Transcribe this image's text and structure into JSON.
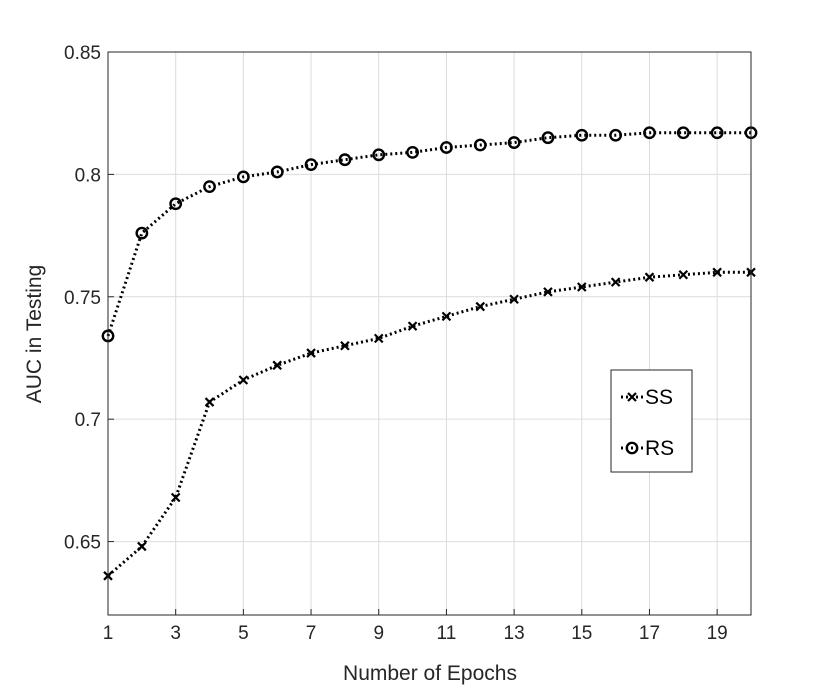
{
  "chart_data": {
    "type": "line",
    "title": "",
    "xlabel": "Number of Epochs",
    "ylabel": "AUC in Testing",
    "xlim": [
      1,
      20
    ],
    "ylim": [
      0.62,
      0.85
    ],
    "xticks": [
      1,
      3,
      5,
      7,
      9,
      11,
      13,
      15,
      17,
      19
    ],
    "yticks": [
      0.65,
      0.7,
      0.75,
      0.8,
      0.85
    ],
    "ytick_labels": [
      "0.65",
      "0.7",
      "0.75",
      "0.8",
      "0.85"
    ],
    "grid": true,
    "legend_position": "right",
    "x": [
      1,
      2,
      3,
      4,
      5,
      6,
      7,
      8,
      9,
      10,
      11,
      12,
      13,
      14,
      15,
      16,
      17,
      18,
      19,
      20
    ],
    "series": [
      {
        "name": "SS",
        "marker": "x",
        "line_style": "dotted",
        "color": "#000000",
        "values": [
          0.636,
          0.648,
          0.668,
          0.707,
          0.716,
          0.722,
          0.727,
          0.73,
          0.733,
          0.738,
          0.742,
          0.746,
          0.749,
          0.752,
          0.754,
          0.756,
          0.758,
          0.759,
          0.76,
          0.76
        ]
      },
      {
        "name": "RS",
        "marker": "o",
        "line_style": "dotted",
        "color": "#000000",
        "values": [
          0.734,
          0.776,
          0.788,
          0.795,
          0.799,
          0.801,
          0.804,
          0.806,
          0.808,
          0.809,
          0.811,
          0.812,
          0.813,
          0.815,
          0.816,
          0.816,
          0.817,
          0.817,
          0.817,
          0.817
        ]
      }
    ]
  }
}
